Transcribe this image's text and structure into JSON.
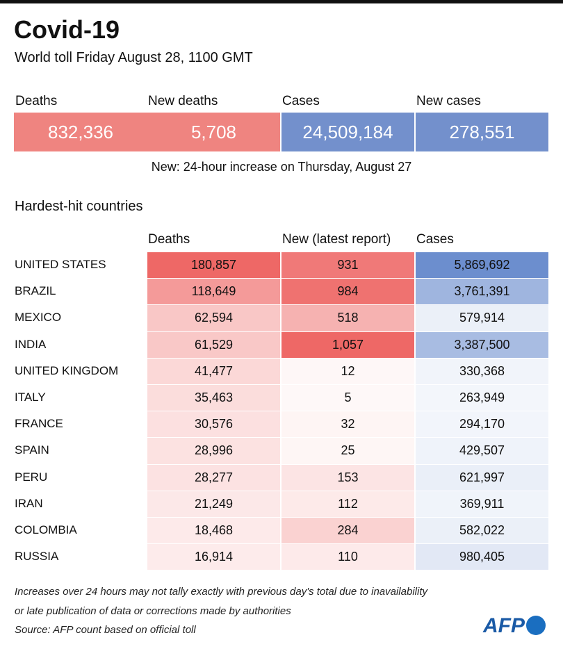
{
  "header": {
    "title": "Covid-19",
    "subtitle": "World toll Friday August 28, 1100 GMT"
  },
  "summary": {
    "labels": [
      "Deaths",
      "New deaths",
      "Cases",
      "New cases"
    ],
    "values": [
      "832,336",
      "5,708",
      "24,509,184",
      "278,551"
    ],
    "note": "New: 24-hour increase on Thursday, August 27"
  },
  "table": {
    "title": "Hardest-hit countries",
    "columns": [
      "Deaths",
      "New (latest report)",
      "Cases"
    ],
    "rows": [
      [
        "UNITED STATES",
        "180,857",
        "931",
        "5,869,692"
      ],
      [
        "BRAZIL",
        "118,649",
        "984",
        "3,761,391"
      ],
      [
        "MEXICO",
        "62,594",
        "518",
        "579,914"
      ],
      [
        "INDIA",
        "61,529",
        "1,057",
        "3,387,500"
      ],
      [
        "UNITED KINGDOM",
        "41,477",
        "12",
        "330,368"
      ],
      [
        "ITALY",
        "35,463",
        "5",
        "263,949"
      ],
      [
        "FRANCE",
        "30,576",
        "32",
        "294,170"
      ],
      [
        "SPAIN",
        "28,996",
        "25",
        "429,507"
      ],
      [
        "PERU",
        "28,277",
        "153",
        "621,997"
      ],
      [
        "IRAN",
        "21,249",
        "112",
        "369,911"
      ],
      [
        "COLOMBIA",
        "18,468",
        "284",
        "582,022"
      ],
      [
        "RUSSIA",
        "16,914",
        "110",
        "980,405"
      ]
    ]
  },
  "footnotes": [
    "Increases over 24 hours may not tally exactly with previous day's total due to inavailability",
    "or late publication of data or corrections made by authorities",
    "Source: AFP count based on official toll"
  ],
  "logo": "AFP"
}
